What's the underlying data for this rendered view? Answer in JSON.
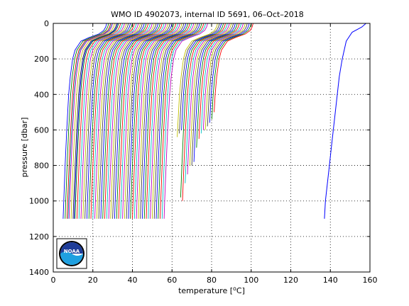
{
  "chart_data": {
    "type": "line",
    "title": "WMO ID 4902073, internal ID 5691, 06–Oct–2018",
    "xlabel_pre": "temperature [",
    "xlabel_sup": "o",
    "xlabel_post": "C]",
    "ylabel": "pressure [dbar]",
    "xlim": [
      0,
      160
    ],
    "ylim": [
      1400,
      0
    ],
    "y_reversed": true,
    "grid": "dotted",
    "xticks": [
      0,
      20,
      40,
      60,
      80,
      100,
      120,
      140,
      160
    ],
    "yticks": [
      0,
      200,
      400,
      600,
      800,
      1000,
      1200,
      1400
    ],
    "colors": [
      "#0000ff",
      "#008000",
      "#ff0000",
      "#00bfbf",
      "#bf00bf",
      "#bfbf00",
      "#404040"
    ],
    "profile_shape": {
      "pressure": [
        0,
        20,
        40,
        60,
        80,
        100,
        150,
        200,
        300,
        400,
        600,
        800,
        1000,
        1100
      ],
      "temp_offset": [
        22,
        21.5,
        20.5,
        18,
        13,
        9,
        6,
        4.8,
        3.6,
        2.8,
        1.8,
        1.0,
        0.3,
        0
      ]
    },
    "profiles": {
      "base_temp_at_bottom": [
        5,
        6,
        7,
        7.5,
        8,
        9,
        10,
        10.5,
        11,
        12,
        13,
        14,
        15,
        16,
        17,
        18,
        19,
        20,
        21,
        22,
        23,
        24,
        25,
        26,
        27,
        28,
        29,
        30,
        31,
        32,
        33,
        34,
        35,
        36,
        37,
        38,
        39,
        40,
        41,
        42,
        43,
        44,
        45,
        46,
        47,
        48,
        49,
        50,
        51,
        52,
        53,
        54,
        55,
        56,
        61,
        62,
        63,
        64,
        65,
        66,
        67,
        68,
        69,
        70,
        71,
        72,
        73,
        74,
        75,
        76,
        77,
        78,
        79
      ],
      "max_pressure": [
        1100,
        1100,
        1100,
        1200,
        1100,
        1100,
        1100,
        1100,
        1100,
        1100,
        1100,
        1100,
        1100,
        1100,
        1200,
        1200,
        1200,
        1200,
        1200,
        1100,
        1100,
        1100,
        1100,
        1100,
        1100,
        1100,
        1200,
        1100,
        1100,
        1100,
        1100,
        1100,
        1100,
        1100,
        1100,
        1100,
        1100,
        1100,
        1200,
        1200,
        1100,
        1100,
        1100,
        1100,
        1100,
        1100,
        1100,
        1100,
        1100,
        1100,
        1100,
        1100,
        1100,
        1100,
        640,
        620,
        600,
        980,
        1000,
        900,
        850,
        800,
        800,
        780,
        700,
        650,
        620,
        600,
        600,
        580,
        560,
        540,
        500
      ]
    },
    "outlier_series": {
      "color": "#0000ff",
      "pressure": [
        0,
        20,
        50,
        100,
        200,
        300,
        400,
        500,
        600,
        700,
        800,
        900,
        1000,
        1100
      ],
      "temperature": [
        158,
        156,
        151,
        148,
        146,
        144.5,
        143.5,
        142.5,
        141.5,
        140.5,
        139.5,
        138.5,
        137.5,
        137
      ]
    }
  },
  "logo": {
    "text": "NOAA",
    "colors": {
      "outer": "#ffffff",
      "sky": "#1f3d99",
      "sea": "#1fa0e0",
      "ring": "#000000"
    }
  }
}
